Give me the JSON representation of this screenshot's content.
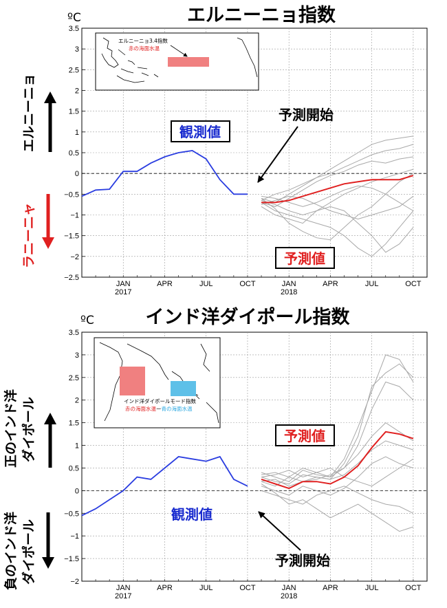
{
  "chart_data": [
    {
      "type": "line",
      "title": "エルニーニョ指数",
      "ylabel_unit": "ºC",
      "ylim": [
        -2.5,
        3.5
      ],
      "yticks": [
        "3.5",
        "3",
        "2.5",
        "2",
        "1.5",
        "1",
        "0.5",
        "0",
        "−0.5",
        "−1",
        "−1.5",
        "−2",
        "−2.5"
      ],
      "xticks": [
        {
          "month": "JAN",
          "year": "2017"
        },
        {
          "month": "APR",
          "year": ""
        },
        {
          "month": "JUL",
          "year": ""
        },
        {
          "month": "OCT",
          "year": ""
        },
        {
          "month": "JAN",
          "year": "2018"
        },
        {
          "month": "APR",
          "year": ""
        },
        {
          "month": "JUL",
          "year": ""
        },
        {
          "month": "OCT",
          "year": ""
        }
      ],
      "grid": true,
      "side_labels": {
        "upper": "エルニーニョ",
        "lower": "ラニーニャ"
      },
      "annotations": {
        "observed": "観測値",
        "forecast": "予測値",
        "forecast_start": "予測開始"
      },
      "inset": {
        "title": "エルニーニョ3.4指数",
        "subtitle": "赤の海面水温"
      },
      "observed": {
        "x": [
          "2016-10",
          "2016-11",
          "2016-12",
          "2017-01",
          "2017-02",
          "2017-03",
          "2017-04",
          "2017-05",
          "2017-06",
          "2017-07",
          "2017-08",
          "2017-09",
          "2017-10"
        ],
        "y": [
          -0.55,
          -0.4,
          -0.38,
          0.05,
          0.05,
          0.25,
          0.4,
          0.5,
          0.55,
          0.35,
          -0.15,
          -0.5,
          -0.5
        ]
      },
      "ensemble_mean": {
        "x": [
          "2017-11",
          "2017-12",
          "2018-01",
          "2018-02",
          "2018-03",
          "2018-04",
          "2018-05",
          "2018-06",
          "2018-07",
          "2018-08",
          "2018-09",
          "2018-10"
        ],
        "y": [
          -0.7,
          -0.7,
          -0.65,
          -0.55,
          -0.45,
          -0.35,
          -0.25,
          -0.2,
          -0.15,
          -0.15,
          -0.15,
          -0.05
        ]
      },
      "members": [
        {
          "x": [
            "2017-11",
            "2017-12",
            "2018-01",
            "2018-02",
            "2018-03",
            "2018-04",
            "2018-05",
            "2018-06",
            "2018-07",
            "2018-08",
            "2018-09",
            "2018-10"
          ],
          "y": [
            -0.6,
            -0.7,
            -0.5,
            -0.3,
            -0.1,
            0.1,
            0.3,
            0.5,
            0.7,
            0.8,
            0.85,
            0.9
          ]
        },
        {
          "x": [
            "2017-11",
            "2017-12",
            "2018-01",
            "2018-02",
            "2018-03",
            "2018-04",
            "2018-05",
            "2018-06",
            "2018-07",
            "2018-08",
            "2018-09",
            "2018-10"
          ],
          "y": [
            -0.65,
            -0.5,
            -0.4,
            -0.25,
            -0.1,
            0.0,
            0.15,
            0.3,
            0.45,
            0.55,
            0.6,
            0.7
          ]
        },
        {
          "x": [
            "2017-11",
            "2017-12",
            "2018-01",
            "2018-02",
            "2018-03",
            "2018-04",
            "2018-05",
            "2018-06",
            "2018-07",
            "2018-08",
            "2018-09",
            "2018-10"
          ],
          "y": [
            -0.7,
            -0.8,
            -0.6,
            -0.4,
            -0.2,
            -0.05,
            0.05,
            0.2,
            0.3,
            0.25,
            0.35,
            0.4
          ]
        },
        {
          "x": [
            "2017-11",
            "2017-12",
            "2018-01",
            "2018-02",
            "2018-03",
            "2018-04",
            "2018-05",
            "2018-06",
            "2018-07",
            "2018-08",
            "2018-09",
            "2018-10"
          ],
          "y": [
            -0.8,
            -1.0,
            -1.1,
            -1.2,
            -0.9,
            -0.7,
            -0.5,
            -0.35,
            -0.2,
            -0.1,
            0.0,
            0.1
          ]
        },
        {
          "x": [
            "2017-11",
            "2017-12",
            "2018-01",
            "2018-02",
            "2018-03",
            "2018-04",
            "2018-05",
            "2018-06",
            "2018-07",
            "2018-08",
            "2018-09",
            "2018-10"
          ],
          "y": [
            -0.6,
            -0.85,
            -1.2,
            -1.4,
            -1.55,
            -1.6,
            -1.3,
            -1.0,
            -0.8,
            -0.5,
            -0.2,
            0.0
          ]
        },
        {
          "x": [
            "2017-11",
            "2017-12",
            "2018-01",
            "2018-02",
            "2018-03",
            "2018-04",
            "2018-05",
            "2018-06",
            "2018-07",
            "2018-08",
            "2018-09",
            "2018-10"
          ],
          "y": [
            -0.7,
            -0.9,
            -1.0,
            -1.1,
            -1.2,
            -1.3,
            -1.5,
            -1.8,
            -2.0,
            -1.7,
            -1.3,
            -0.9
          ]
        },
        {
          "x": [
            "2017-11",
            "2017-12",
            "2018-01",
            "2018-02",
            "2018-03",
            "2018-04",
            "2018-05",
            "2018-06",
            "2018-07",
            "2018-08",
            "2018-09",
            "2018-10"
          ],
          "y": [
            -0.65,
            -0.75,
            -0.9,
            -1.0,
            -0.9,
            -0.8,
            -0.9,
            -1.2,
            -1.5,
            -1.9,
            -1.7,
            -1.3
          ]
        },
        {
          "x": [
            "2017-11",
            "2017-12",
            "2018-01",
            "2018-02",
            "2018-03",
            "2018-04",
            "2018-05",
            "2018-06",
            "2018-07",
            "2018-08",
            "2018-09",
            "2018-10"
          ],
          "y": [
            -0.55,
            -0.6,
            -0.7,
            -0.8,
            -0.7,
            -0.55,
            -0.4,
            -0.3,
            -0.35,
            -0.5,
            -0.7,
            -0.9
          ]
        },
        {
          "x": [
            "2017-11",
            "2017-12",
            "2018-01",
            "2018-02",
            "2018-03",
            "2018-04",
            "2018-05",
            "2018-06",
            "2018-07",
            "2018-08",
            "2018-09",
            "2018-10"
          ],
          "y": [
            -0.75,
            -0.65,
            -0.55,
            -0.6,
            -0.75,
            -0.9,
            -1.0,
            -1.1,
            -1.0,
            -0.9,
            -0.8,
            -0.55
          ]
        }
      ]
    },
    {
      "type": "line",
      "title": "インド洋ダイポール指数",
      "ylabel_unit": "ºC",
      "ylim": [
        -2,
        3.5
      ],
      "yticks": [
        "3.5",
        "3",
        "2.5",
        "2",
        "1.5",
        "1",
        "0.5",
        "0",
        "−0.5",
        "−1",
        "−1.5",
        "−2"
      ],
      "xticks": [
        {
          "month": "JAN",
          "year": "2017"
        },
        {
          "month": "APR",
          "year": ""
        },
        {
          "month": "JUL",
          "year": ""
        },
        {
          "month": "OCT",
          "year": ""
        },
        {
          "month": "JAN",
          "year": "2018"
        },
        {
          "month": "APR",
          "year": ""
        },
        {
          "month": "JUL",
          "year": ""
        },
        {
          "month": "OCT",
          "year": ""
        }
      ],
      "grid": true,
      "side_labels": {
        "upper_line1": "正のインド洋",
        "upper_line2": "ダイポール",
        "lower_line1": "負のインド洋",
        "lower_line2": "ダイポール"
      },
      "annotations": {
        "observed": "観測値",
        "forecast": "予測値",
        "forecast_start": "予測開始"
      },
      "inset": {
        "title": "インド洋ダイポールモード指数",
        "subtitle_red": "赤の海面水温",
        "subtitle_dash": "ー",
        "subtitle_blue": "青の海面水温"
      },
      "observed": {
        "x": [
          "2016-10",
          "2016-11",
          "2016-12",
          "2017-01",
          "2017-02",
          "2017-03",
          "2017-04",
          "2017-05",
          "2017-06",
          "2017-07",
          "2017-08",
          "2017-09",
          "2017-10"
        ],
        "y": [
          -0.55,
          -0.4,
          -0.2,
          0.0,
          0.3,
          0.25,
          0.5,
          0.75,
          0.7,
          0.65,
          0.75,
          0.25,
          0.1
        ]
      },
      "ensemble_mean": {
        "x": [
          "2017-11",
          "2017-12",
          "2018-01",
          "2018-02",
          "2018-03",
          "2018-04",
          "2018-05",
          "2018-06",
          "2018-07",
          "2018-08",
          "2018-09",
          "2018-10"
        ],
        "y": [
          0.25,
          0.15,
          0.05,
          0.2,
          0.2,
          0.15,
          0.3,
          0.55,
          0.95,
          1.3,
          1.25,
          1.15
        ]
      },
      "members": [
        {
          "x": [
            "2017-11",
            "2017-12",
            "2018-01",
            "2018-02",
            "2018-03",
            "2018-04",
            "2018-05",
            "2018-06",
            "2018-07",
            "2018-08",
            "2018-09",
            "2018-10"
          ],
          "y": [
            0.3,
            0.2,
            0.15,
            0.35,
            0.3,
            0.25,
            0.6,
            1.2,
            2.3,
            2.6,
            2.8,
            2.5
          ]
        },
        {
          "x": [
            "2017-11",
            "2017-12",
            "2018-01",
            "2018-02",
            "2018-03",
            "2018-04",
            "2018-05",
            "2018-06",
            "2018-07",
            "2018-08",
            "2018-09",
            "2018-10"
          ],
          "y": [
            0.4,
            0.3,
            0.2,
            0.45,
            0.35,
            0.3,
            0.7,
            1.4,
            2.2,
            3.0,
            2.9,
            2.4
          ]
        },
        {
          "x": [
            "2017-11",
            "2017-12",
            "2018-01",
            "2018-02",
            "2018-03",
            "2018-04",
            "2018-05",
            "2018-06",
            "2018-07",
            "2018-08",
            "2018-09",
            "2018-10"
          ],
          "y": [
            0.2,
            0.1,
            0.3,
            0.5,
            0.4,
            0.3,
            0.5,
            1.0,
            1.8,
            2.4,
            2.3,
            2.0
          ]
        },
        {
          "x": [
            "2017-11",
            "2017-12",
            "2018-01",
            "2018-02",
            "2018-03",
            "2018-04",
            "2018-05",
            "2018-06",
            "2018-07",
            "2018-08",
            "2018-09",
            "2018-10"
          ],
          "y": [
            0.2,
            0.25,
            0.1,
            0.2,
            0.25,
            0.35,
            0.5,
            0.8,
            1.2,
            1.5,
            1.3,
            1.1
          ]
        },
        {
          "x": [
            "2017-11",
            "2017-12",
            "2018-01",
            "2018-02",
            "2018-03",
            "2018-04",
            "2018-05",
            "2018-06",
            "2018-07",
            "2018-08",
            "2018-09",
            "2018-10"
          ],
          "y": [
            0.35,
            0.4,
            0.3,
            0.2,
            0.3,
            0.25,
            0.35,
            0.6,
            0.9,
            1.1,
            1.0,
            0.9
          ]
        },
        {
          "x": [
            "2017-11",
            "2017-12",
            "2018-01",
            "2018-02",
            "2018-03",
            "2018-04",
            "2018-05",
            "2018-06",
            "2018-07",
            "2018-08",
            "2018-09",
            "2018-10"
          ],
          "y": [
            0.1,
            0.0,
            -0.1,
            0.1,
            0.0,
            -0.1,
            0.05,
            0.3,
            0.6,
            0.75,
            0.6,
            0.5
          ]
        },
        {
          "x": [
            "2017-11",
            "2017-12",
            "2018-01",
            "2018-02",
            "2018-03",
            "2018-04",
            "2018-05",
            "2018-06",
            "2018-07",
            "2018-08",
            "2018-09",
            "2018-10"
          ],
          "y": [
            0.0,
            -0.1,
            -0.2,
            -0.3,
            -0.1,
            0.0,
            0.1,
            -0.05,
            -0.2,
            -0.3,
            -0.35,
            -0.5
          ]
        },
        {
          "x": [
            "2017-11",
            "2017-12",
            "2018-01",
            "2018-02",
            "2018-03",
            "2018-04",
            "2018-05",
            "2018-06",
            "2018-07",
            "2018-08",
            "2018-09",
            "2018-10"
          ],
          "y": [
            0.15,
            -0.05,
            -0.3,
            -0.2,
            -0.4,
            -0.6,
            -0.45,
            -0.3,
            -0.5,
            -0.7,
            -0.9,
            -0.8
          ]
        },
        {
          "x": [
            "2017-11",
            "2017-12",
            "2018-01",
            "2018-02",
            "2018-03",
            "2018-04",
            "2018-05",
            "2018-06",
            "2018-07",
            "2018-08",
            "2018-09",
            "2018-10"
          ],
          "y": [
            0.3,
            0.35,
            0.45,
            0.3,
            0.4,
            0.5,
            0.3,
            0.2,
            0.1,
            0.3,
            0.5,
            0.7
          ]
        }
      ]
    }
  ]
}
